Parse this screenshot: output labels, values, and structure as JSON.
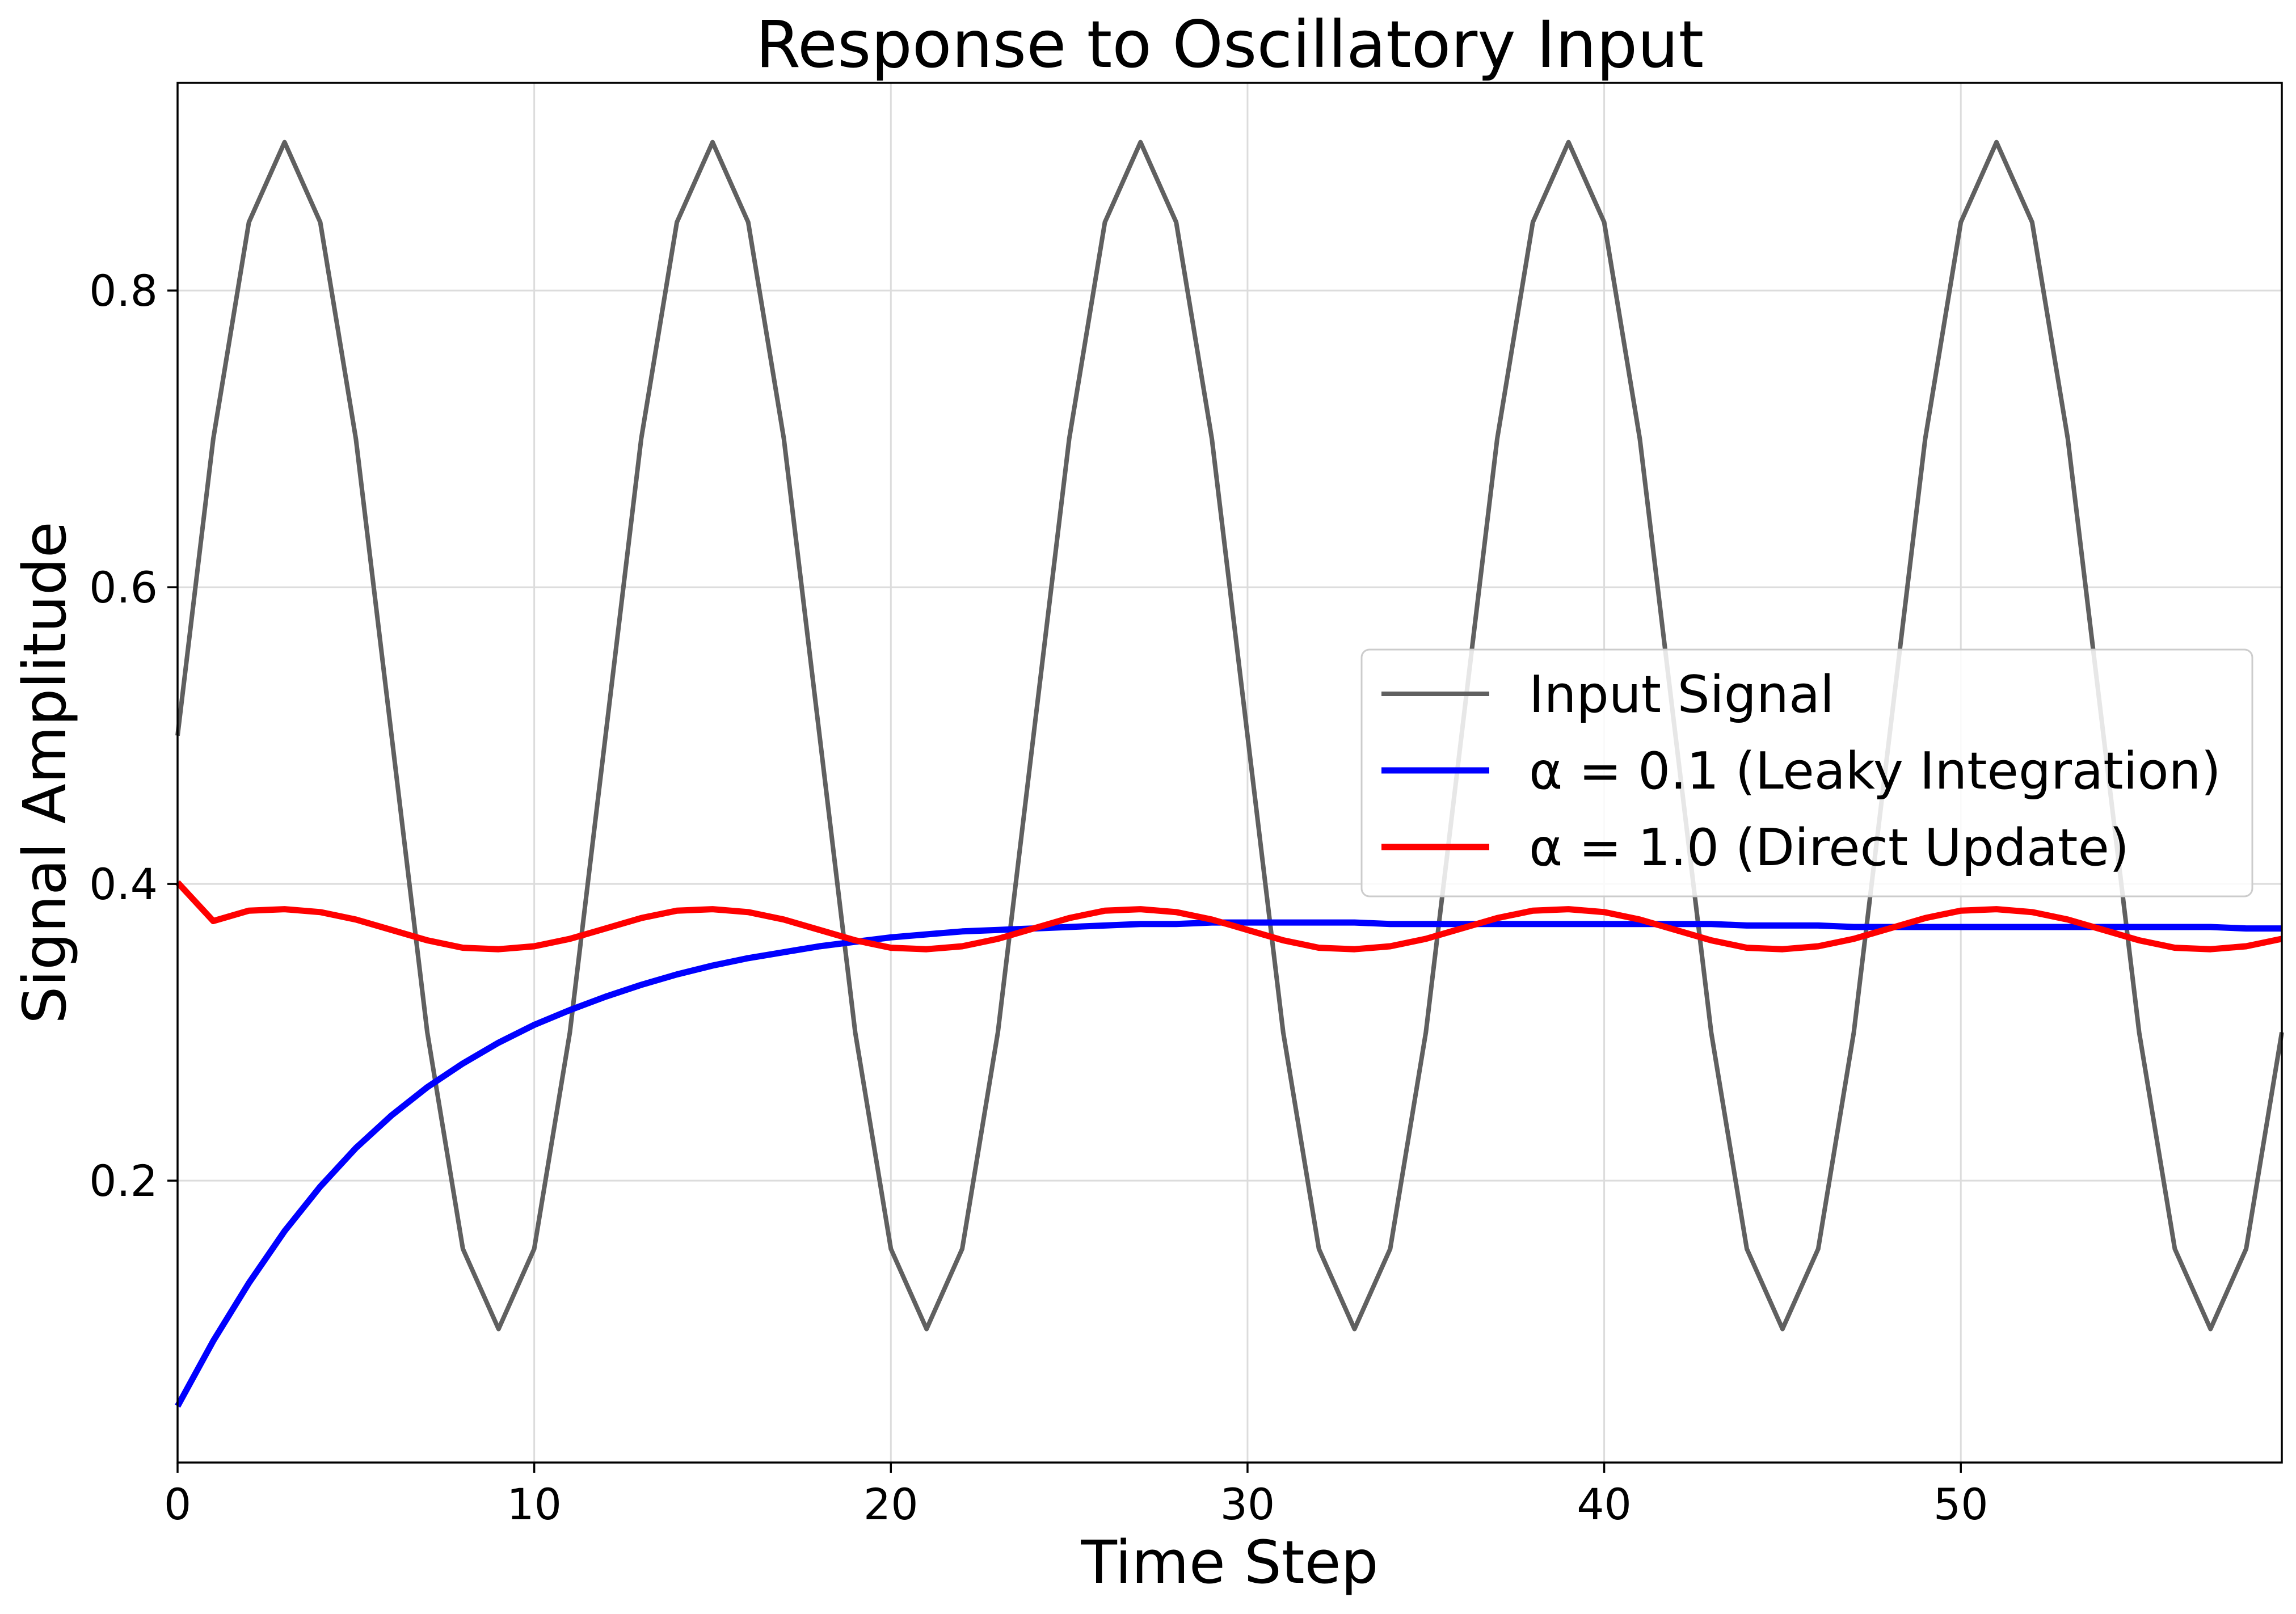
{
  "chart_data": {
    "type": "line",
    "title": "Response to Oscillatory Input",
    "xlabel": "Time Step",
    "ylabel": "Signal Amplitude",
    "xlim": [
      0,
      59
    ],
    "ylim": [
      0.01,
      0.94
    ],
    "xticks": [
      0,
      10,
      20,
      30,
      40,
      50
    ],
    "yticks": [
      0.2,
      0.4,
      0.6,
      0.8
    ],
    "xtick_labels": [
      "0",
      "10",
      "20",
      "30",
      "40",
      "50"
    ],
    "ytick_labels": [
      "0.2",
      "0.4",
      "0.6",
      "0.8"
    ],
    "grid": true,
    "legend_position": "center-right",
    "series": [
      {
        "name": "Input Signal",
        "color": "#606060",
        "x": [
          0,
          1,
          2,
          3,
          4,
          5,
          6,
          7,
          8,
          9,
          10,
          11,
          12,
          13,
          14,
          15,
          16,
          17,
          18,
          19,
          20,
          21,
          22,
          23,
          24,
          25,
          26,
          27,
          28,
          29,
          30,
          31,
          32,
          33,
          34,
          35,
          36,
          37,
          38,
          39,
          40,
          41,
          42,
          43,
          44,
          45,
          46,
          47,
          48,
          49,
          50,
          51,
          52,
          53,
          54,
          55,
          56,
          57,
          58,
          59
        ],
        "values": [
          0.5,
          0.7,
          0.846,
          0.9,
          0.846,
          0.7,
          0.5,
          0.3,
          0.154,
          0.1,
          0.154,
          0.3,
          0.5,
          0.7,
          0.846,
          0.9,
          0.846,
          0.7,
          0.5,
          0.3,
          0.154,
          0.1,
          0.154,
          0.3,
          0.5,
          0.7,
          0.846,
          0.9,
          0.846,
          0.7,
          0.5,
          0.3,
          0.154,
          0.1,
          0.154,
          0.3,
          0.5,
          0.7,
          0.846,
          0.9,
          0.846,
          0.7,
          0.5,
          0.3,
          0.154,
          0.1,
          0.154,
          0.3,
          0.5,
          0.7,
          0.846,
          0.9,
          0.846,
          0.7,
          0.5,
          0.3,
          0.154,
          0.1,
          0.154,
          0.3
        ]
      },
      {
        "name": "α = 0.1 (Leaky Integration)",
        "color": "#0000ff",
        "x": [
          0,
          1,
          2,
          3,
          4,
          5,
          6,
          7,
          8,
          9,
          10,
          11,
          12,
          13,
          14,
          15,
          16,
          17,
          18,
          19,
          20,
          21,
          22,
          23,
          24,
          25,
          26,
          27,
          28,
          29,
          30,
          31,
          32,
          33,
          34,
          35,
          36,
          37,
          38,
          39,
          40,
          41,
          42,
          43,
          44,
          45,
          46,
          47,
          48,
          49,
          50,
          51,
          52,
          53,
          54,
          55,
          56,
          57,
          58,
          59
        ],
        "values": [
          0.048,
          0.092,
          0.131,
          0.166,
          0.196,
          0.222,
          0.244,
          0.263,
          0.279,
          0.293,
          0.305,
          0.315,
          0.324,
          0.332,
          0.339,
          0.345,
          0.35,
          0.354,
          0.358,
          0.361,
          0.364,
          0.366,
          0.368,
          0.369,
          0.37,
          0.371,
          0.372,
          0.373,
          0.373,
          0.374,
          0.374,
          0.374,
          0.374,
          0.374,
          0.373,
          0.373,
          0.373,
          0.373,
          0.373,
          0.373,
          0.373,
          0.373,
          0.373,
          0.373,
          0.372,
          0.372,
          0.372,
          0.371,
          0.371,
          0.371,
          0.371,
          0.371,
          0.371,
          0.371,
          0.371,
          0.371,
          0.371,
          0.371,
          0.37,
          0.37
        ]
      },
      {
        "name": "α = 1.0 (Direct Update)",
        "color": "#ff0000",
        "x": [
          0,
          1,
          2,
          3,
          4,
          5,
          6,
          7,
          8,
          9,
          10,
          11,
          12,
          13,
          14,
          15,
          16,
          17,
          18,
          19,
          20,
          21,
          22,
          23,
          24,
          25,
          26,
          27,
          28,
          29,
          30,
          31,
          32,
          33,
          34,
          35,
          36,
          37,
          38,
          39,
          40,
          41,
          42,
          43,
          44,
          45,
          46,
          47,
          48,
          49,
          50,
          51,
          52,
          53,
          54,
          55,
          56,
          57,
          58,
          59
        ],
        "values": [
          0.401,
          0.375,
          0.382,
          0.383,
          0.381,
          0.376,
          0.369,
          0.362,
          0.357,
          0.356,
          0.358,
          0.363,
          0.37,
          0.377,
          0.382,
          0.383,
          0.381,
          0.376,
          0.369,
          0.362,
          0.357,
          0.356,
          0.358,
          0.363,
          0.37,
          0.377,
          0.382,
          0.383,
          0.381,
          0.376,
          0.369,
          0.362,
          0.357,
          0.356,
          0.358,
          0.363,
          0.37,
          0.377,
          0.382,
          0.383,
          0.381,
          0.376,
          0.369,
          0.362,
          0.357,
          0.356,
          0.358,
          0.363,
          0.37,
          0.377,
          0.382,
          0.383,
          0.381,
          0.376,
          0.369,
          0.362,
          0.357,
          0.356,
          0.358,
          0.363
        ]
      }
    ]
  }
}
